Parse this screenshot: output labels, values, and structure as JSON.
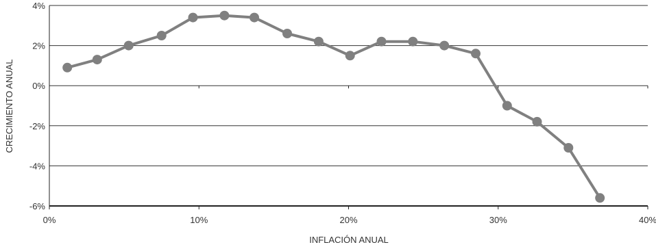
{
  "chart_data": {
    "type": "line",
    "xlabel": "INFLACIÓN ANUAL",
    "ylabel": "CRECIMIENTO ANUAL",
    "xlim": [
      0,
      40
    ],
    "ylim": [
      -6,
      4
    ],
    "x_ticks": [
      0,
      10,
      20,
      30,
      40
    ],
    "y_ticks": [
      4,
      2,
      0,
      -2,
      -4,
      -6
    ],
    "x_tick_labels": [
      "0%",
      "10%",
      "20%",
      "30%",
      "40%"
    ],
    "y_tick_labels": [
      "4%",
      "2%",
      "0%",
      "-2%",
      "-4%",
      "-6%"
    ],
    "grid": "horizontal",
    "legend": "none",
    "line_color": "#808080",
    "grid_color": "#333333",
    "series": [
      {
        "x": [
          1.2,
          3.2,
          5.3,
          7.5,
          9.6,
          11.7,
          13.7,
          15.9,
          18.0,
          20.1,
          22.2,
          24.3,
          26.4,
          28.5,
          30.6,
          32.6,
          34.7,
          36.8
        ],
        "values": [
          0.9,
          1.3,
          2.0,
          2.5,
          3.4,
          3.5,
          3.4,
          2.6,
          2.2,
          1.5,
          2.2,
          2.2,
          2.0,
          1.6,
          -1.0,
          -1.8,
          -3.1,
          -5.6
        ]
      }
    ]
  }
}
